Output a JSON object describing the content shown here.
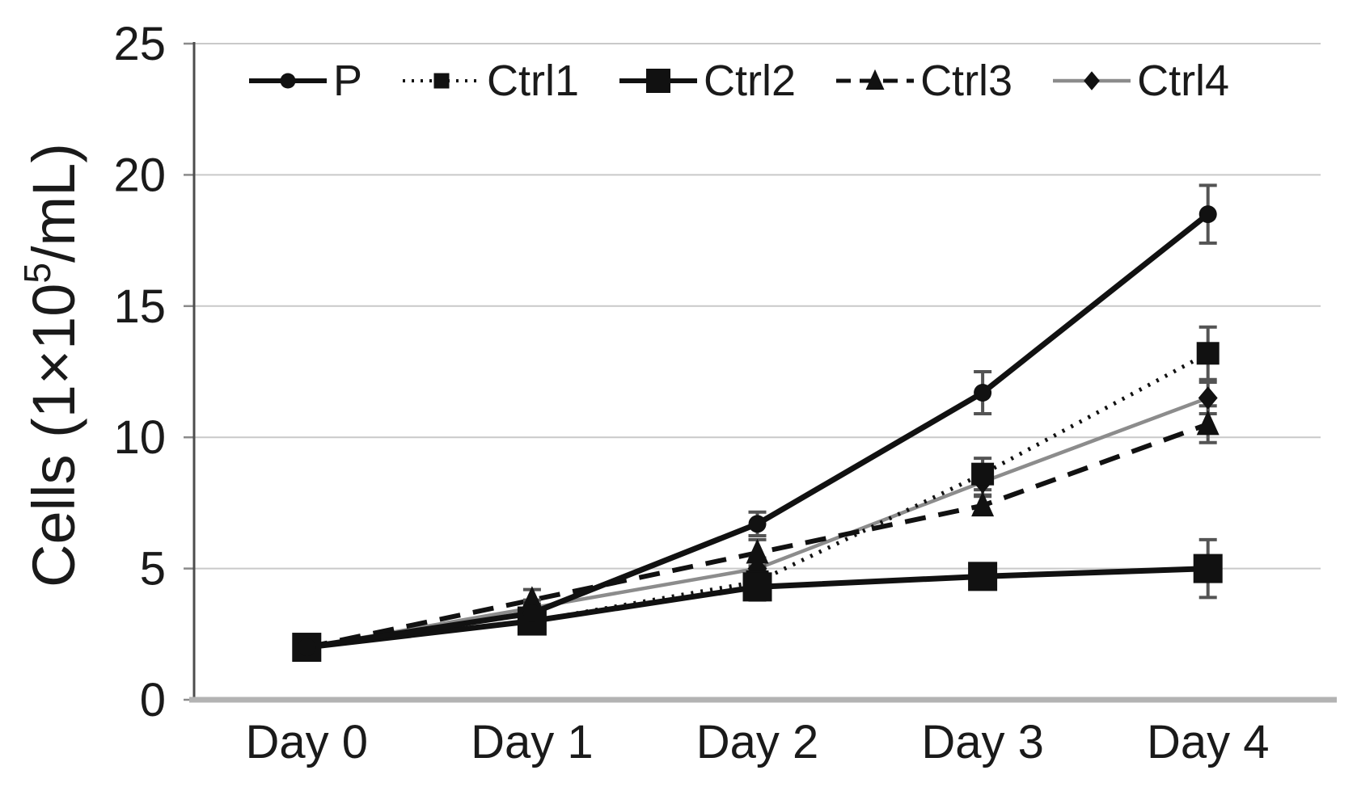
{
  "figure": {
    "y_axis": {
      "label_prefix": "Cells (1×10",
      "label_sup": "5",
      "label_suffix": "/mL)"
    }
  },
  "chart_data": {
    "type": "line",
    "title": "",
    "xlabel": "",
    "ylabel": "Cells (1×10^5/mL)",
    "categories": [
      "Day 0",
      "Day 1",
      "Day 2",
      "Day 3",
      "Day 4"
    ],
    "ylim": [
      0,
      25
    ],
    "yticks": [
      0,
      5,
      10,
      15,
      20,
      25
    ],
    "grid": "horizontal",
    "legend_position": "top",
    "colors": {
      "series_black": "#111111",
      "series_gray": "#8c8c8c",
      "gridline": "#c9c9c9",
      "x_axis_line": "#b3b3b3",
      "y_axis_line": "#4d4d4d",
      "error_bar": "#545454",
      "text": "#1a1a1a"
    },
    "series": [
      {
        "name": "P",
        "marker": "circle",
        "line_style": "solid",
        "color": "#111111",
        "marker_color": "#111111",
        "values": [
          2.0,
          3.3,
          6.7,
          11.7,
          18.5
        ],
        "errors": [
          0.15,
          0.35,
          0.45,
          0.8,
          1.1
        ]
      },
      {
        "name": "Ctrl1",
        "marker": "square-small",
        "line_style": "dotted",
        "color": "#111111",
        "marker_color": "#111111",
        "values": [
          2.0,
          3.0,
          4.5,
          8.6,
          13.2
        ],
        "errors": [
          0.15,
          0.3,
          0.4,
          0.6,
          1.0
        ]
      },
      {
        "name": "Ctrl2",
        "marker": "square-large",
        "line_style": "solid",
        "color": "#111111",
        "marker_color": "#111111",
        "values": [
          2.0,
          3.0,
          4.3,
          4.7,
          5.0
        ],
        "errors": [
          0.15,
          0.3,
          0.5,
          0.3,
          1.1
        ]
      },
      {
        "name": "Ctrl3",
        "marker": "triangle",
        "line_style": "dashed",
        "color": "#111111",
        "marker_color": "#111111",
        "values": [
          2.0,
          3.8,
          5.6,
          7.4,
          10.5
        ],
        "errors": [
          0.15,
          0.4,
          0.5,
          0.35,
          0.7
        ]
      },
      {
        "name": "Ctrl4",
        "marker": "diamond",
        "line_style": "solid",
        "color": "#8c8c8c",
        "marker_color": "#111111",
        "values": [
          2.0,
          3.5,
          5.0,
          8.3,
          11.5
        ],
        "errors": [
          0.15,
          0.3,
          0.4,
          0.5,
          0.6
        ]
      }
    ]
  }
}
